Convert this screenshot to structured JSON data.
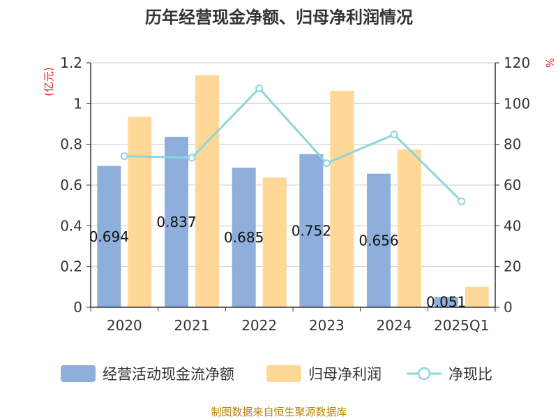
{
  "chart_data": {
    "type": "bar",
    "title": "历年经营现金净额、归母净利润情况",
    "categories": [
      "2020",
      "2021",
      "2022",
      "2023",
      "2024",
      "2025Q1"
    ],
    "left_axis": {
      "unit": "(亿元)",
      "ylim": [
        0,
        1.2
      ],
      "ticks": [
        "0",
        "0.2",
        "0.4",
        "0.6",
        "0.8",
        "1",
        "1.2"
      ]
    },
    "right_axis": {
      "unit": "%",
      "ylim": [
        0,
        120
      ],
      "ticks": [
        "0",
        "20",
        "40",
        "60",
        "80",
        "100",
        "120"
      ]
    },
    "series": [
      {
        "name": "经营活动现金流净额",
        "type": "bar",
        "axis": "left",
        "color": "#8eaedb",
        "values": [
          0.694,
          0.837,
          0.685,
          0.752,
          0.656,
          0.051
        ],
        "labels": [
          "0.694",
          "0.837",
          "0.685",
          "0.752",
          "0.656",
          "0.051"
        ]
      },
      {
        "name": "归母净利润",
        "type": "bar",
        "axis": "left",
        "color": "#ffd898",
        "values": [
          0.935,
          1.14,
          0.637,
          1.063,
          0.774,
          0.1
        ]
      },
      {
        "name": "净现比",
        "type": "line",
        "axis": "right",
        "color": "#8ed5dc",
        "values": [
          74.2,
          73.4,
          107.5,
          70.7,
          84.8,
          52.0
        ]
      }
    ],
    "grid": true,
    "legend_position": "bottom"
  },
  "source": "制图数据来自恒生聚源数据库"
}
